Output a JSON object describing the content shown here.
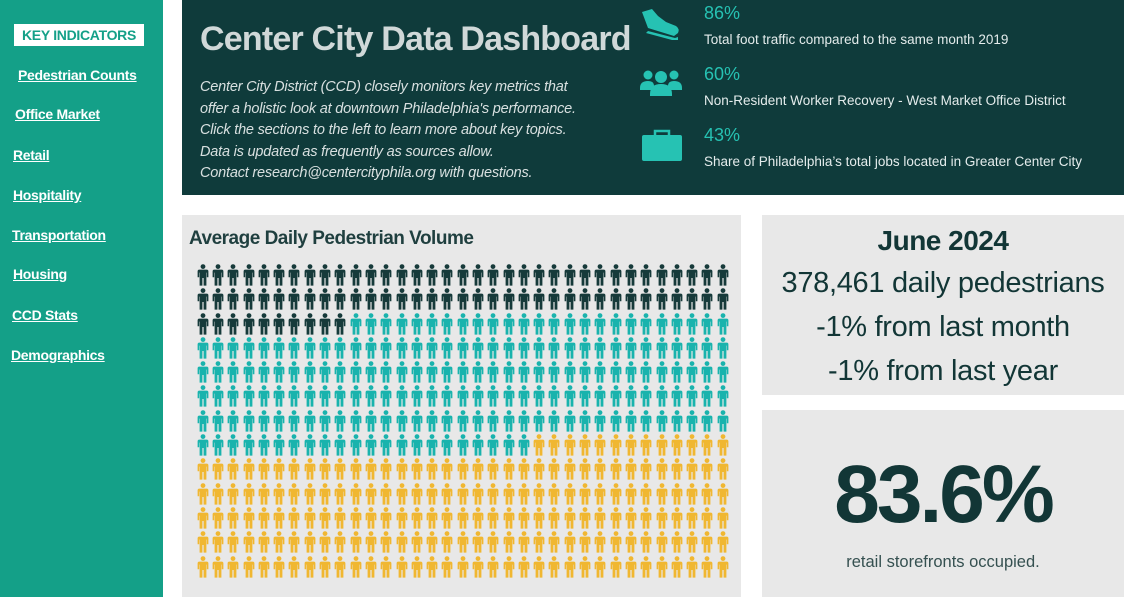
{
  "sidebar": {
    "heading": "KEY INDICATORS",
    "items": [
      {
        "label": "Pedestrian Counts"
      },
      {
        "label": "Office Market"
      },
      {
        "label": "Retail"
      },
      {
        "label": "Hospitality"
      },
      {
        "label": "Transportation"
      },
      {
        "label": "Housing"
      },
      {
        "label": "CCD Stats"
      },
      {
        "label": "Demographics"
      }
    ]
  },
  "header": {
    "title": "Center City Data Dashboard",
    "description": [
      "Center City District (CCD) closely monitors key metrics that",
      "offer a holistic look at downtown Philadelphia's performance.",
      "Click the sections to the left to learn more about key topics.",
      "Data is updated as frequently as sources allow.",
      "Contact research@centercityphila.org with questions."
    ],
    "kpis": [
      {
        "icon": "shoe-icon",
        "value": "86%",
        "label": "Total foot traffic compared to the same month 2019"
      },
      {
        "icon": "people-group-icon",
        "value": "60%",
        "label": "Non-Resident Worker Recovery - West Market Office District"
      },
      {
        "icon": "briefcase-icon",
        "value": "43%",
        "label": "Share of Philadelphia’s total jobs located in Greater Center City"
      }
    ]
  },
  "pedestrian_panel": {
    "title": "Average Daily Pedestrian Volume",
    "waffle": {
      "columns": 35,
      "rows": 13,
      "groups": [
        {
          "color": "#163a3a",
          "count": 80
        },
        {
          "color": "#19b3ad",
          "count": 187
        },
        {
          "color": "#f0b731",
          "count": 188
        }
      ]
    }
  },
  "summary": {
    "month": "June 2024",
    "daily": "378,461 daily pedestrians",
    "vs_month": "-1% from last month",
    "vs_year": "-1% from last year"
  },
  "retail": {
    "value": "83.6%",
    "label": "retail storefronts occupied."
  },
  "colors": {
    "sidebar_bg": "#14a088",
    "header_bg": "#0f3b3b",
    "accent_teal": "#26c2b3",
    "panel_bg": "#e8e8e8"
  }
}
